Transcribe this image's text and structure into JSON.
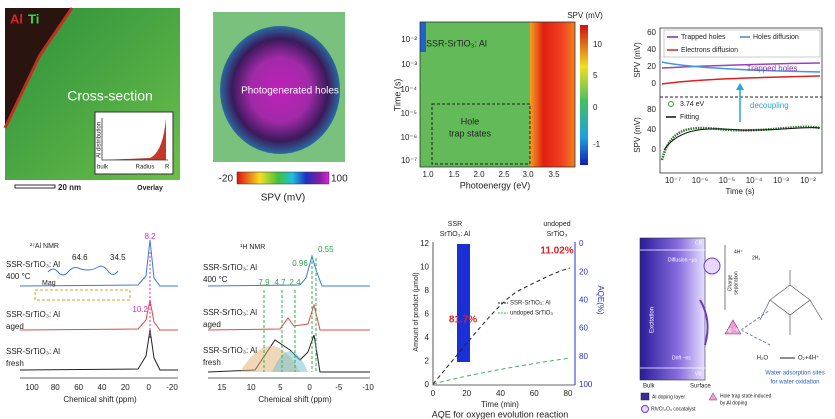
{
  "eds_map": {
    "element_al": "Al",
    "element_ti": "Ti",
    "region": "Cross-section",
    "inset_y": "Al distribution",
    "inset_x": "Radius",
    "inset_bulk": "bulk",
    "inset_r": "R",
    "caption": "Overlay",
    "scale_bar": "20 nm"
  },
  "spv_map": {
    "label": "Photogenerated holes",
    "colorbar_min": "-20",
    "colorbar_max": "100",
    "colorbar_title": "SPV (mV)"
  },
  "spv_spectrum": {
    "sample": "SSR-SrTiO₃: Al",
    "box_line1": "Hole",
    "box_line2": "trap states",
    "y_title": "Time (s)",
    "x_title": "Photoenergy (eV)",
    "y_ticks": [
      "10⁻²",
      "10⁻³",
      "10⁻⁴",
      "10⁻⁵",
      "10⁻⁶",
      "10⁻⁷"
    ],
    "x_ticks": [
      "1.0",
      "1.5",
      "2.0",
      "2.5",
      "3.0",
      "3.5"
    ],
    "colorbar_title": "SPV (mV)",
    "colorbar_ticks": [
      "10",
      "5",
      "0",
      "-1"
    ]
  },
  "spv_transient": {
    "legend": [
      "Trapped holes",
      "Holes diffusion",
      "Electrons diffusion"
    ],
    "curve_label": "Trapped holes",
    "energy": "3.74 eV",
    "fit_legend": "Fitting",
    "annotation": "decoupling",
    "y_title": "SPV (mV)",
    "top_y_ticks": [
      "60",
      "40",
      "20",
      "0"
    ],
    "bottom_y_ticks": [
      "80",
      "40",
      "0"
    ],
    "x_ticks": [
      "10⁻⁷",
      "10⁻⁶",
      "10⁻⁵",
      "10⁻⁴",
      "10⁻³",
      "10⁻²"
    ],
    "x_title": "Time (s)"
  },
  "al_nmr": {
    "title": "²⁷Al NMR",
    "traces": [
      {
        "sample": "SSR-SrTiO₃: Al",
        "condition": "400 °C"
      },
      {
        "sample": "SSR-SrTiO₃: Al",
        "condition": "aged"
      },
      {
        "sample": "SSR-SrTiO₃: Al",
        "condition": "fresh"
      }
    ],
    "peaks": [
      "64.6",
      "34.5",
      "8.2",
      "10.2"
    ],
    "inset_label": "Mag",
    "x_ticks": [
      "100",
      "80",
      "60",
      "40",
      "20",
      "0",
      "-20"
    ],
    "x_title": "Chemical shift (ppm)"
  },
  "h_nmr": {
    "title": "¹H NMR",
    "traces": [
      {
        "sample": "SSR-SrTiO₃: Al",
        "condition": "400 °C"
      },
      {
        "sample": "SSR-SrTiO₃: Al",
        "condition": "aged"
      },
      {
        "sample": "SSR-SrTiO₃: Al",
        "condition": "fresh"
      }
    ],
    "peaks": [
      "0.55",
      "0.96",
      "7.9",
      "4.7",
      "2.4"
    ],
    "x_ticks": [
      "15",
      "10",
      "5",
      "0",
      "-5",
      "-10"
    ],
    "x_title": "Chemical shift (ppm)"
  },
  "aqe": {
    "header_left": [
      "SSR",
      "SrTiO₃: Al"
    ],
    "header_right": [
      "undoped",
      "SrTiO₃"
    ],
    "aqe_undoped": "11.02%",
    "aqe_doped": "81.7%",
    "y_title": "Amount of product (μmol)",
    "y_ticks": [
      "0",
      "2",
      "4",
      "6",
      "8",
      "10",
      "12"
    ],
    "y2_title": "AQE(%)",
    "y2_ticks": [
      "0",
      "20",
      "40",
      "60",
      "80",
      "100"
    ],
    "x_ticks": [
      "0",
      "20",
      "40",
      "60",
      "80"
    ],
    "x_title": "Time (min)",
    "legend": [
      "SSR-SrTiO₃: Al",
      "undoped SrTiO₃"
    ],
    "caption": "AQE for oxygen evolution reaction"
  },
  "mechanism": {
    "cb": "CB",
    "vb": "VB",
    "diffusion": "Diffusion ~μs",
    "excitation": "Excitation",
    "separation": [
      "Charge",
      "separation"
    ],
    "trapping": "Trapping ~ms",
    "drift": "Drift ~ns",
    "bulk": "Bulk",
    "surface": "Surface",
    "h_plus": "4H⁺",
    "h2": "2H₂",
    "h2o": "H₂O",
    "o2": "O₂+4H⁺",
    "sites": [
      "Water adsorption sites",
      "for water oxidation"
    ],
    "legend": [
      "Al doping layer",
      "Hole trap state induced",
      "by Al doping",
      "Rh/Cr₂O₃ cocatalyst"
    ]
  }
}
